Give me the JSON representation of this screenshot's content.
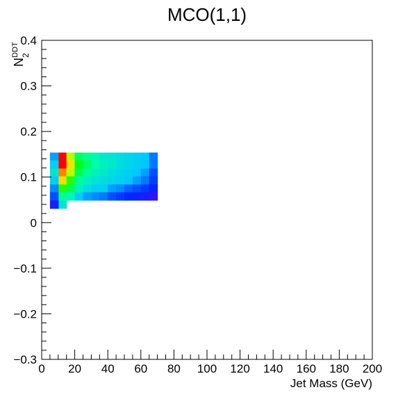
{
  "chart_data": {
    "type": "heatmap",
    "title": "MCO(1,1)",
    "xlabel": "Jet Mass (GeV)",
    "ylabel": "N",
    "ylabel_sub": "2",
    "ylabel_sup": "DDT",
    "xlim": [
      0,
      200
    ],
    "ylim": [
      -0.3,
      0.4
    ],
    "x_ticks": [
      0,
      20,
      40,
      60,
      80,
      100,
      120,
      140,
      160,
      180,
      200
    ],
    "y_ticks": [
      -0.3,
      -0.2,
      -0.1,
      0,
      0.1,
      0.2,
      0.3,
      0.4
    ],
    "x_tick_labels": [
      "0",
      "20",
      "40",
      "60",
      "80",
      "100",
      "120",
      "140",
      "160",
      "180",
      "200"
    ],
    "y_tick_labels": [
      "−0.3",
      "−0.2",
      "−0.1",
      "0",
      "0.1",
      "0.2",
      "0.3",
      "0.4"
    ],
    "bin_width_x": 5,
    "bin_width_y": 0.0175,
    "colormap": "rainbow",
    "colors": {
      "background": "#ffffff",
      "frame": "#000000",
      "low": "#6600ff",
      "high": "#ff0000"
    },
    "grid": false,
    "cells": [
      [
        10,
        0.145,
        1.0
      ],
      [
        10,
        0.128,
        1.0
      ],
      [
        10,
        0.11,
        0.92
      ],
      [
        10,
        0.093,
        0.84
      ],
      [
        10,
        0.075,
        0.66
      ],
      [
        10,
        0.058,
        0.52
      ],
      [
        10,
        0.04,
        0.42
      ],
      [
        15,
        0.145,
        0.74
      ],
      [
        15,
        0.128,
        0.82
      ],
      [
        15,
        0.11,
        0.74
      ],
      [
        15,
        0.093,
        0.66
      ],
      [
        15,
        0.075,
        0.58
      ],
      [
        15,
        0.058,
        0.48
      ],
      [
        5,
        0.145,
        0.3
      ],
      [
        5,
        0.128,
        0.36
      ],
      [
        5,
        0.11,
        0.42
      ],
      [
        5,
        0.093,
        0.36
      ],
      [
        5,
        0.075,
        0.28
      ],
      [
        5,
        0.058,
        0.22
      ],
      [
        5,
        0.04,
        0.14
      ],
      [
        20,
        0.145,
        0.56
      ],
      [
        20,
        0.128,
        0.62
      ],
      [
        20,
        0.11,
        0.58
      ],
      [
        20,
        0.093,
        0.52
      ],
      [
        20,
        0.075,
        0.46
      ],
      [
        20,
        0.058,
        0.36
      ],
      [
        25,
        0.145,
        0.52
      ],
      [
        25,
        0.128,
        0.56
      ],
      [
        25,
        0.11,
        0.52
      ],
      [
        25,
        0.093,
        0.46
      ],
      [
        25,
        0.075,
        0.4
      ],
      [
        25,
        0.058,
        0.3
      ],
      [
        30,
        0.145,
        0.48
      ],
      [
        30,
        0.128,
        0.5
      ],
      [
        30,
        0.11,
        0.46
      ],
      [
        30,
        0.093,
        0.42
      ],
      [
        30,
        0.075,
        0.36
      ],
      [
        30,
        0.058,
        0.28
      ],
      [
        35,
        0.145,
        0.44
      ],
      [
        35,
        0.128,
        0.46
      ],
      [
        35,
        0.11,
        0.44
      ],
      [
        35,
        0.093,
        0.4
      ],
      [
        35,
        0.075,
        0.36
      ],
      [
        35,
        0.058,
        0.26
      ],
      [
        40,
        0.145,
        0.42
      ],
      [
        40,
        0.128,
        0.44
      ],
      [
        40,
        0.11,
        0.4
      ],
      [
        40,
        0.093,
        0.38
      ],
      [
        40,
        0.075,
        0.3
      ],
      [
        40,
        0.058,
        0.22
      ],
      [
        45,
        0.145,
        0.4
      ],
      [
        45,
        0.128,
        0.4
      ],
      [
        45,
        0.11,
        0.38
      ],
      [
        45,
        0.093,
        0.36
      ],
      [
        45,
        0.075,
        0.28
      ],
      [
        45,
        0.058,
        0.2
      ],
      [
        50,
        0.145,
        0.38
      ],
      [
        50,
        0.128,
        0.38
      ],
      [
        50,
        0.11,
        0.36
      ],
      [
        50,
        0.093,
        0.34
      ],
      [
        50,
        0.075,
        0.24
      ],
      [
        50,
        0.058,
        0.18
      ],
      [
        55,
        0.145,
        0.36
      ],
      [
        55,
        0.128,
        0.36
      ],
      [
        55,
        0.11,
        0.34
      ],
      [
        55,
        0.093,
        0.3
      ],
      [
        55,
        0.075,
        0.22
      ],
      [
        55,
        0.058,
        0.16
      ],
      [
        60,
        0.145,
        0.34
      ],
      [
        60,
        0.128,
        0.34
      ],
      [
        60,
        0.11,
        0.3
      ],
      [
        60,
        0.093,
        0.26
      ],
      [
        60,
        0.075,
        0.2
      ],
      [
        60,
        0.058,
        0.14
      ],
      [
        65,
        0.145,
        0.26
      ],
      [
        65,
        0.128,
        0.26
      ],
      [
        65,
        0.11,
        0.22
      ],
      [
        65,
        0.093,
        0.2
      ],
      [
        65,
        0.075,
        0.16
      ],
      [
        65,
        0.058,
        0.1
      ]
    ]
  }
}
